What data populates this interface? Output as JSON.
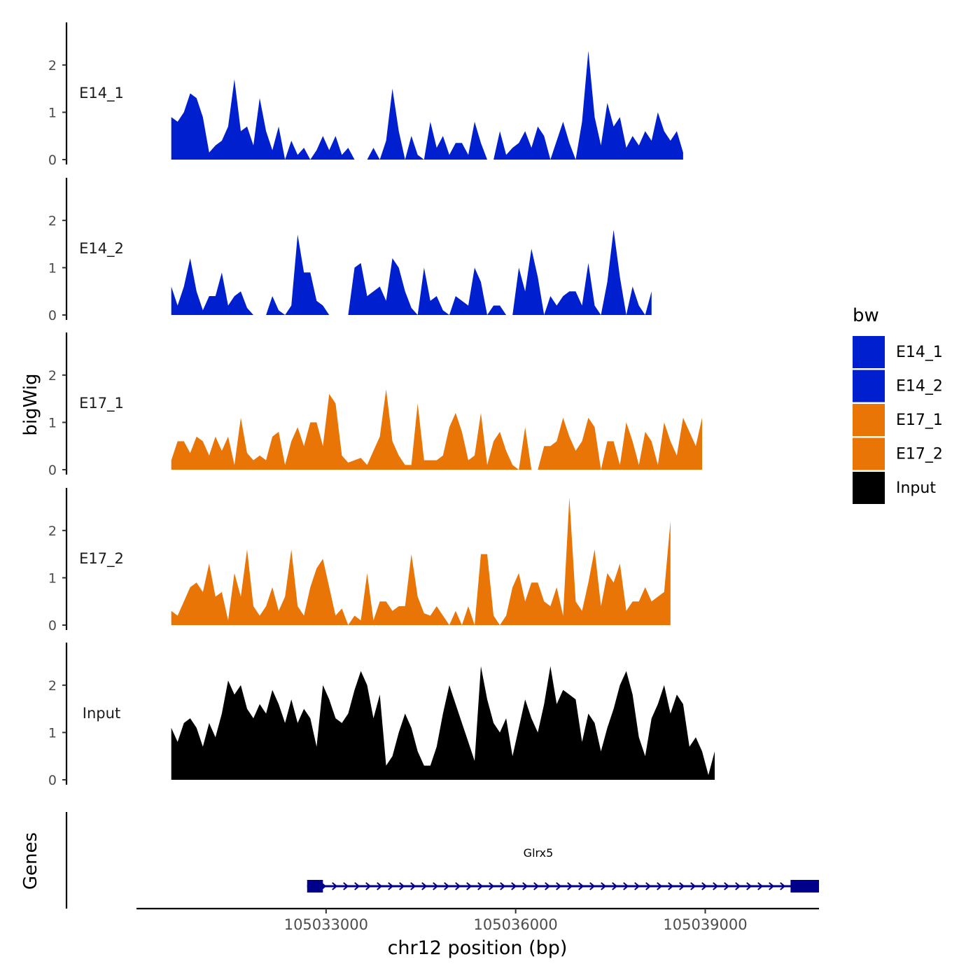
{
  "chart_data": {
    "type": "area",
    "title": "",
    "ylabel": "bigWig",
    "xlabel": "chr12 position (bp)",
    "genes_label": "Genes",
    "xlim": [
      105030000,
      105040800
    ],
    "ylim": [
      0,
      2.9
    ],
    "x_ticks": [
      105033000,
      105036000,
      105039000
    ],
    "x_tick_labels": [
      "105033000",
      "105036000",
      "105039000"
    ],
    "y_ticks": [
      0,
      1,
      2
    ],
    "y_tick_labels": [
      "0",
      "1",
      "2"
    ],
    "legend": {
      "title": "bw",
      "position": "right",
      "entries": [
        {
          "label": "E14_1",
          "color": "#0020D0"
        },
        {
          "label": "E14_2",
          "color": "#0020D0"
        },
        {
          "label": "E17_1",
          "color": "#E87506"
        },
        {
          "label": "E17_2",
          "color": "#E87506"
        },
        {
          "label": "Input",
          "color": "#000000"
        }
      ]
    },
    "x_start": 105030550,
    "x_step": 100,
    "series": [
      {
        "name": "E14_1",
        "color": "#0020D0",
        "values": [
          0.9,
          0.8,
          1.0,
          1.4,
          1.3,
          0.9,
          0.15,
          0.3,
          0.4,
          0.7,
          1.7,
          0.6,
          0.7,
          0.3,
          1.3,
          0.6,
          0.2,
          0.7,
          0.0,
          0.4,
          0.1,
          0.25,
          0.0,
          0.2,
          0.5,
          0.2,
          0.5,
          0.1,
          0.25,
          0.0,
          0.0,
          0.0,
          0.25,
          0.0,
          0.4,
          1.5,
          0.6,
          0.0,
          0.5,
          0.1,
          0.0,
          0.8,
          0.25,
          0.5,
          0.1,
          0.35,
          0.35,
          0.1,
          0.8,
          0.35,
          0.0,
          0.0,
          0.6,
          0.1,
          0.25,
          0.35,
          0.6,
          0.25,
          0.7,
          0.5,
          0.0,
          0.4,
          0.8,
          0.35,
          0.0,
          0.8,
          2.3,
          0.9,
          0.3,
          1.2,
          0.7,
          0.9,
          0.25,
          0.5,
          0.3,
          0.6,
          0.4,
          1.0,
          0.6,
          0.4,
          0.6,
          0.15
        ]
      },
      {
        "name": "E14_2",
        "color": "#0020D0",
        "values": [
          0.6,
          0.2,
          0.6,
          1.2,
          0.5,
          0.1,
          0.4,
          0.4,
          0.9,
          0.2,
          0.4,
          0.5,
          0.15,
          0.0,
          0.0,
          0.0,
          0.4,
          0.1,
          0.0,
          0.2,
          1.7,
          0.9,
          0.9,
          0.3,
          0.2,
          0.0,
          0.0,
          0.0,
          0.0,
          1.0,
          1.1,
          0.4,
          0.5,
          0.6,
          0.3,
          1.2,
          1.0,
          0.5,
          0.15,
          0.0,
          1.0,
          0.3,
          0.4,
          0.1,
          0.0,
          0.4,
          0.3,
          0.2,
          1.0,
          0.7,
          0.0,
          0.2,
          0.2,
          0.0,
          0.0,
          1.0,
          0.5,
          1.4,
          0.8,
          0.0,
          0.4,
          0.2,
          0.4,
          0.5,
          0.5,
          0.2,
          1.1,
          0.2,
          0.0,
          0.7,
          1.8,
          0.8,
          0.0,
          0.6,
          0.2,
          0.0,
          0.5
        ]
      },
      {
        "name": "E17_1",
        "color": "#E87506",
        "values": [
          0.2,
          0.6,
          0.6,
          0.35,
          0.7,
          0.6,
          0.3,
          0.7,
          0.4,
          0.7,
          0.1,
          1.1,
          0.35,
          0.2,
          0.3,
          0.2,
          0.7,
          0.8,
          0.1,
          0.6,
          0.9,
          0.5,
          1.0,
          1.0,
          0.5,
          1.6,
          1.4,
          0.3,
          0.15,
          0.2,
          0.25,
          0.1,
          0.4,
          0.7,
          1.7,
          0.6,
          0.3,
          0.1,
          0.1,
          1.4,
          0.2,
          0.2,
          0.2,
          0.3,
          0.9,
          1.2,
          0.8,
          0.2,
          0.3,
          1.2,
          0.1,
          0.6,
          0.8,
          0.4,
          0.1,
          0.0,
          0.9,
          0.0,
          0.0,
          0.5,
          0.5,
          0.6,
          1.1,
          0.7,
          0.4,
          0.6,
          1.1,
          0.9,
          0.0,
          0.6,
          0.6,
          0.1,
          1.0,
          0.6,
          0.1,
          0.8,
          0.6,
          0.1,
          1.0,
          0.6,
          0.3,
          1.1,
          0.8,
          0.5,
          1.1
        ]
      },
      {
        "name": "E17_2",
        "color": "#E87506",
        "values": [
          0.3,
          0.2,
          0.5,
          0.8,
          0.9,
          0.7,
          1.3,
          0.6,
          0.7,
          0.1,
          1.1,
          0.6,
          1.6,
          0.4,
          0.2,
          0.4,
          0.8,
          0.3,
          0.6,
          1.6,
          0.4,
          0.2,
          0.8,
          1.2,
          1.4,
          0.8,
          0.2,
          0.35,
          0.0,
          0.2,
          0.1,
          1.1,
          0.1,
          0.5,
          0.5,
          0.3,
          0.4,
          0.4,
          1.5,
          0.6,
          0.25,
          0.2,
          0.4,
          0.2,
          0.0,
          0.3,
          0.0,
          0.4,
          0.0,
          1.5,
          1.5,
          0.2,
          0.0,
          0.2,
          0.8,
          1.1,
          0.5,
          0.9,
          0.9,
          0.5,
          0.4,
          0.8,
          0.2,
          2.7,
          0.5,
          0.3,
          0.9,
          1.6,
          0.4,
          1.1,
          0.9,
          1.3,
          0.3,
          0.5,
          0.5,
          0.8,
          0.5,
          0.6,
          0.7,
          2.2
        ]
      },
      {
        "name": "Input",
        "color": "#000000",
        "values": [
          1.1,
          0.8,
          1.2,
          1.3,
          1.1,
          0.7,
          1.2,
          0.9,
          1.4,
          2.1,
          1.8,
          2.0,
          1.5,
          1.3,
          1.6,
          1.4,
          1.9,
          1.6,
          1.2,
          1.7,
          1.2,
          1.5,
          1.3,
          0.7,
          2.0,
          1.7,
          1.3,
          1.2,
          1.4,
          1.9,
          2.3,
          2.0,
          1.3,
          1.8,
          0.3,
          0.5,
          1.0,
          1.4,
          1.1,
          0.6,
          0.3,
          0.3,
          0.7,
          1.4,
          2.0,
          1.6,
          1.2,
          0.8,
          0.4,
          2.4,
          1.7,
          1.2,
          1.0,
          1.3,
          0.5,
          1.1,
          1.7,
          1.3,
          1.0,
          1.6,
          2.4,
          1.6,
          1.9,
          1.8,
          1.7,
          0.8,
          1.4,
          1.2,
          0.6,
          1.1,
          1.5,
          2.0,
          2.3,
          1.8,
          0.9,
          0.5,
          1.3,
          1.6,
          2.0,
          1.4,
          1.8,
          1.6,
          0.7,
          0.9,
          0.6,
          0.1,
          0.6
        ]
      }
    ],
    "gene": {
      "name": "Glrx5",
      "strand": "+",
      "color": "#00008B",
      "start": 105032700,
      "end": 105040800,
      "exons": [
        [
          105032700,
          105032950
        ],
        [
          105040350,
          105040800
        ]
      ]
    }
  }
}
